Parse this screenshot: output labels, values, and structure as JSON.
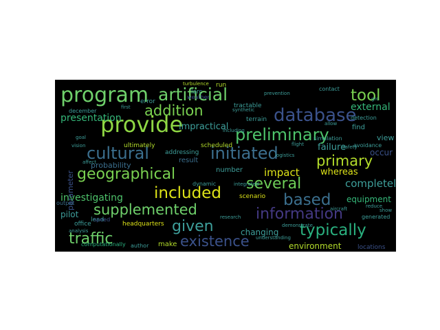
{
  "wordcloud": {
    "background": "#000000",
    "words": [
      {
        "text": "program",
        "color": "#6fd06b"
      },
      {
        "text": "artificial",
        "color": "#6fd06b"
      },
      {
        "text": "tool",
        "color": "#7ad151"
      },
      {
        "text": "provide",
        "color": "#8fd744"
      },
      {
        "text": "addition",
        "color": "#7ad151"
      },
      {
        "text": "database",
        "color": "#3b528b"
      },
      {
        "text": "preliminary",
        "color": "#4ec36b"
      },
      {
        "text": "presentation",
        "color": "#35b779"
      },
      {
        "text": "impractical",
        "color": "#3e9f9b"
      },
      {
        "text": "external",
        "color": "#35b779"
      },
      {
        "text": "cultural",
        "color": "#3b6f8e"
      },
      {
        "text": "initiated",
        "color": "#3c6f8e"
      },
      {
        "text": "primary",
        "color": "#b3dc2b"
      },
      {
        "text": "geographical",
        "color": "#7ad151"
      },
      {
        "text": "several",
        "color": "#6ece58"
      },
      {
        "text": "included",
        "color": "#dde318"
      },
      {
        "text": "impact",
        "color": "#dde318"
      },
      {
        "text": "whereas",
        "color": "#dde318"
      },
      {
        "text": "completely",
        "color": "#3e9f9b"
      },
      {
        "text": "based",
        "color": "#3b6f8e"
      },
      {
        "text": "investigating",
        "color": "#4ec36b"
      },
      {
        "text": "supplemented",
        "color": "#6fd06b"
      },
      {
        "text": "information",
        "color": "#443983"
      },
      {
        "text": "equipment",
        "color": "#35b779"
      },
      {
        "text": "given",
        "color": "#3e9f9b"
      },
      {
        "text": "typically",
        "color": "#2ab07f"
      },
      {
        "text": "traffic",
        "color": "#6fd06b"
      },
      {
        "text": "existence",
        "color": "#3b528b"
      },
      {
        "text": "changing",
        "color": "#3e9f9b"
      },
      {
        "text": "environment",
        "color": "#b3dc2b"
      },
      {
        "text": "failure",
        "color": "#3e9f9b"
      },
      {
        "text": "probability",
        "color": "#3b6f8e"
      },
      {
        "text": "parameter",
        "color": "#3b528b"
      },
      {
        "text": "pilot",
        "color": "#3e9f9b"
      },
      {
        "text": "headquarters",
        "color": "#dde318"
      },
      {
        "text": "make",
        "color": "#b3dc2b"
      },
      {
        "text": "author",
        "color": "#3e9f9b"
      },
      {
        "text": "computationally",
        "color": "#2ab07f"
      },
      {
        "text": "office",
        "color": "#3e9f9b"
      },
      {
        "text": "lead",
        "color": "#3e9f9b"
      },
      {
        "text": "output",
        "color": "#3b6f8e"
      },
      {
        "text": "result",
        "color": "#3b6f8e"
      },
      {
        "text": "number",
        "color": "#3e9f9b"
      },
      {
        "text": "scenario",
        "color": "#dde318"
      },
      {
        "text": "occur",
        "color": "#3b528b"
      },
      {
        "text": "view",
        "color": "#3e9f9b"
      },
      {
        "text": "find",
        "color": "#3e9f9b"
      },
      {
        "text": "generated",
        "color": "#3e9f9b"
      },
      {
        "text": "show",
        "color": "#3e9f9b"
      },
      {
        "text": "error",
        "color": "#3e9f9b"
      },
      {
        "text": "run",
        "color": "#b3dc2b"
      },
      {
        "text": "larc",
        "color": "#3e9f9b"
      },
      {
        "text": "contact",
        "color": "#3e9f9b"
      },
      {
        "text": "tractable",
        "color": "#3e9f9b"
      },
      {
        "text": "december",
        "color": "#3e9f9b"
      },
      {
        "text": "terrain",
        "color": "#3e9f9b"
      },
      {
        "text": "detection",
        "color": "#3e9f9b"
      },
      {
        "text": "ultimately",
        "color": "#b3dc2b"
      },
      {
        "text": "scheduled",
        "color": "#b3dc2b"
      },
      {
        "text": "addressing",
        "color": "#3e9f9b"
      },
      {
        "text": "dynamic",
        "color": "#3e9f9b"
      },
      {
        "text": "turbulence",
        "color": "#b3dc2b"
      },
      {
        "text": "speed",
        "color": "#3b528b"
      },
      {
        "text": "locations",
        "color": "#3b528b"
      },
      {
        "text": "weather",
        "color": "#3b528b"
      },
      {
        "text": "first",
        "color": "#3e9f9b"
      },
      {
        "text": "grc",
        "color": "#3e9f9b"
      },
      {
        "text": "flight",
        "color": "#3e9f9b"
      },
      {
        "text": "simulation",
        "color": "#3e9f9b"
      },
      {
        "text": "avoidance",
        "color": "#3e9f9b"
      },
      {
        "text": "logistics",
        "color": "#3e9f9b"
      },
      {
        "text": "aircraft",
        "color": "#3e9f9b"
      },
      {
        "text": "integrated",
        "color": "#3e9f9b"
      },
      {
        "text": "synthetic",
        "color": "#3e9f9b"
      },
      {
        "text": "including",
        "color": "#3e9f9b"
      },
      {
        "text": "prevention",
        "color": "#3e9f9b"
      },
      {
        "text": "understanding",
        "color": "#3e9f9b"
      },
      {
        "text": "demonstrate",
        "color": "#3e9f9b"
      },
      {
        "text": "affect",
        "color": "#3e9f9b"
      },
      {
        "text": "vision",
        "color": "#3e9f9b"
      },
      {
        "text": "analysis",
        "color": "#3e9f9b"
      },
      {
        "text": "goal",
        "color": "#3e9f9b"
      },
      {
        "text": "allow",
        "color": "#3e9f9b"
      },
      {
        "text": "reduce",
        "color": "#3e9f9b"
      },
      {
        "text": "safety",
        "color": "#3e9f9b"
      },
      {
        "text": "research",
        "color": "#3e9f9b"
      }
    ]
  }
}
